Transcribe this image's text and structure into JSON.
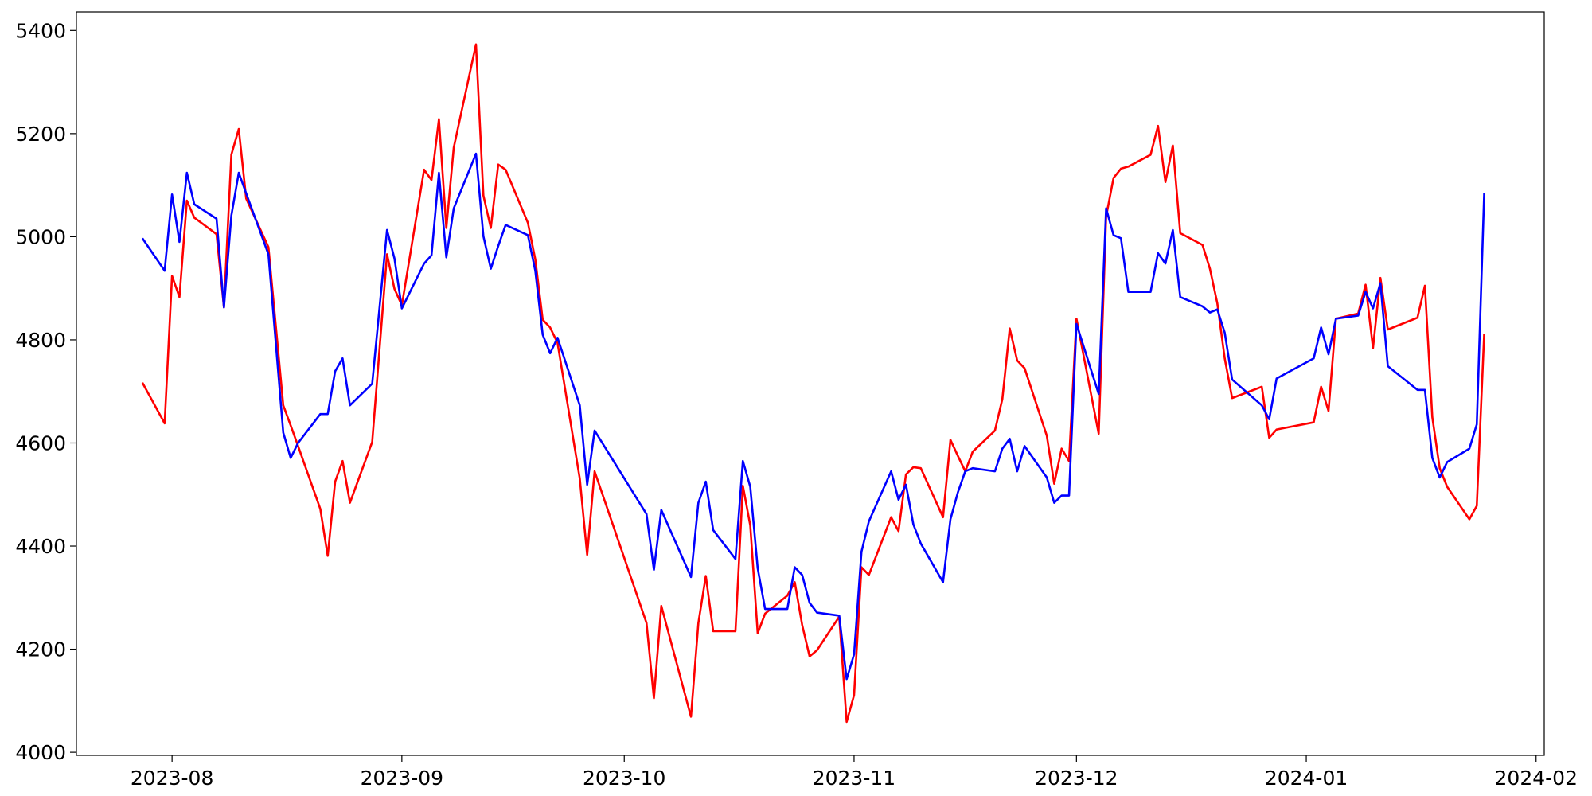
{
  "chart_data": {
    "type": "line",
    "x": [
      19566,
      19569,
      19570,
      19571,
      19572,
      19573,
      19576,
      19577,
      19578,
      19579,
      19580,
      19583,
      19585,
      19586,
      19587,
      19590,
      19591,
      19592,
      19593,
      19594,
      19597,
      19599,
      19600,
      19601,
      19604,
      19605,
      19606,
      19607,
      19608,
      19611,
      19612,
      19613,
      19614,
      19615,
      19618,
      19619,
      19620,
      19621,
      19622,
      19625,
      19626,
      19627,
      19634,
      19635,
      19636,
      19640,
      19641,
      19642,
      19643,
      19646,
      19647,
      19648,
      19649,
      19650,
      19653,
      19654,
      19655,
      19656,
      19657,
      19660,
      19661,
      19662,
      19663,
      19664,
      19667,
      19668,
      19669,
      19670,
      19671,
      19674,
      19675,
      19676,
      19677,
      19678,
      19681,
      19682,
      19683,
      19684,
      19685,
      19688,
      19689,
      19690,
      19691,
      19692,
      19695,
      19696,
      19697,
      19698,
      19699,
      19702,
      19703,
      19704,
      19705,
      19706,
      19709,
      19710,
      19711,
      19712,
      19713,
      19717,
      19718,
      19719,
      19724,
      19725,
      19726,
      19727,
      19730,
      19731,
      19732,
      19733,
      19734,
      19738,
      19739,
      19740,
      19741,
      19742,
      19745,
      19746,
      19747
    ],
    "series": [
      {
        "color": "#ff0000",
        "values": [
          4717,
          4638,
          4924,
          4883,
          5070,
          5037,
          5005,
          4863,
          5159,
          5209,
          5074,
          4980,
          4673,
          4634,
          4594,
          4472,
          4381,
          4525,
          4565,
          4484,
          4602,
          4966,
          4899,
          4867,
          5130,
          5110,
          5228,
          5017,
          5173,
          5373,
          5080,
          5017,
          5140,
          5130,
          5027,
          4956,
          4839,
          4824,
          4794,
          4531,
          4383,
          4545,
          4251,
          4105,
          4284,
          4069,
          4251,
          4342,
          4235,
          4235,
          4517,
          4440,
          4231,
          4269,
          4304,
          4330,
          4247,
          4186,
          4198,
          4263,
          4059,
          4111,
          4359,
          4344,
          4456,
          4429,
          4539,
          4553,
          4551,
          4456,
          4606,
          4575,
          4545,
          4583,
          4624,
          4685,
          4822,
          4760,
          4745,
          4614,
          4521,
          4589,
          4565,
          4841,
          4618,
          5039,
          5114,
          5132,
          5136,
          5159,
          5215,
          5106,
          5177,
          5007,
          4984,
          4938,
          4871,
          4764,
          4687,
          4709,
          4610,
          4626,
          4640,
          4709,
          4662,
          4841,
          4851,
          4907,
          4784,
          4920,
          4820,
          4843,
          4905,
          4650,
          4551,
          4515,
          4452,
          4478,
          4812
        ]
      },
      {
        "color": "#0000ff",
        "values": [
          4997,
          4934,
          5082,
          4990,
          5124,
          5063,
          5035,
          4863,
          5041,
          5124,
          5084,
          4966,
          4620,
          4571,
          4600,
          4656,
          4656,
          4739,
          4764,
          4673,
          4715,
          5013,
          4958,
          4861,
          4948,
          4964,
          5124,
          4960,
          5055,
          5161,
          5001,
          4938,
          4982,
          5023,
          5003,
          4934,
          4810,
          4774,
          4804,
          4673,
          4519,
          4624,
          4462,
          4354,
          4470,
          4340,
          4484,
          4525,
          4431,
          4375,
          4565,
          4515,
          4357,
          4278,
          4278,
          4359,
          4344,
          4290,
          4271,
          4265,
          4142,
          4190,
          4389,
          4448,
          4545,
          4490,
          4519,
          4442,
          4405,
          4330,
          4452,
          4504,
          4545,
          4551,
          4545,
          4589,
          4608,
          4545,
          4594,
          4533,
          4484,
          4498,
          4498,
          4831,
          4695,
          5055,
          5003,
          4997,
          4893,
          4893,
          4968,
          4948,
          5013,
          4883,
          4865,
          4853,
          4859,
          4814,
          4723,
          4673,
          4646,
          4725,
          4764,
          4824,
          4772,
          4841,
          4847,
          4893,
          4861,
          4910,
          4749,
          4703,
          4703,
          4571,
          4533,
          4563,
          4589,
          4636,
          5084
        ]
      }
    ],
    "xlim": [
      19557.1,
      19755.1
    ],
    "xticks": [
      {
        "value": 19570,
        "label": "2023-08"
      },
      {
        "value": 19601,
        "label": "2023-09"
      },
      {
        "value": 19631,
        "label": "2023-10"
      },
      {
        "value": 19662,
        "label": "2023-11"
      },
      {
        "value": 19692,
        "label": "2023-12"
      },
      {
        "value": 19723,
        "label": "2024-01"
      },
      {
        "value": 19754,
        "label": "2024-02"
      }
    ],
    "ylim": [
      3994,
      5436
    ],
    "yticks": [
      4000,
      4200,
      4400,
      4600,
      4800,
      5000,
      5200,
      5400
    ]
  }
}
